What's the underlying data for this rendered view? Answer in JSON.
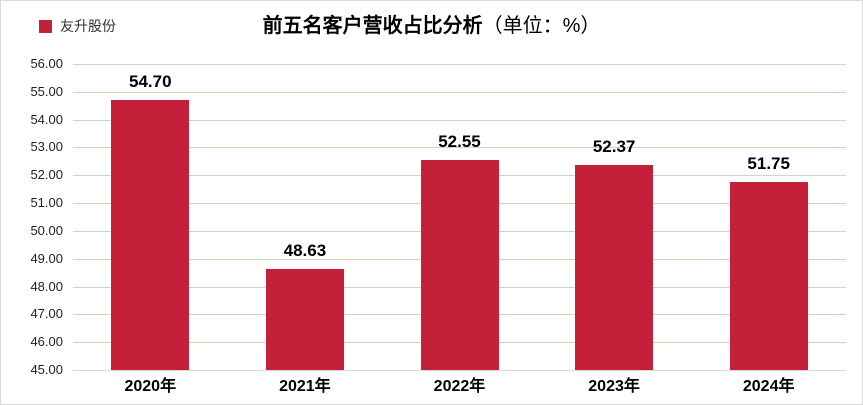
{
  "legend": {
    "series_label": "友升股份"
  },
  "title": {
    "main": "前五名客户营收占比分析",
    "unit": "（单位：%）"
  },
  "chart_data": {
    "type": "bar",
    "title": "前五名客户营收占比分析（单位：%）",
    "series_name": "友升股份",
    "categories": [
      "2020年",
      "2021年",
      "2022年",
      "2023年",
      "2024年"
    ],
    "values": [
      54.7,
      48.63,
      52.55,
      52.37,
      51.75
    ],
    "value_labels": [
      "54.70",
      "48.63",
      "52.55",
      "52.37",
      "51.75"
    ],
    "ylim": [
      45,
      56
    ],
    "ytick_step": 1,
    "ytick_labels": [
      "56.00",
      "55.00",
      "54.00",
      "53.00",
      "52.00",
      "51.00",
      "50.00",
      "49.00",
      "48.00",
      "47.00",
      "46.00",
      "45.00"
    ],
    "grid": true,
    "legend_position": "top-left",
    "xlabel": "",
    "ylabel": "",
    "colors": {
      "bar": "#c5203a",
      "gridline": "#c5ddba",
      "axis_line": "#d9d9d9",
      "text": "#000000"
    }
  }
}
